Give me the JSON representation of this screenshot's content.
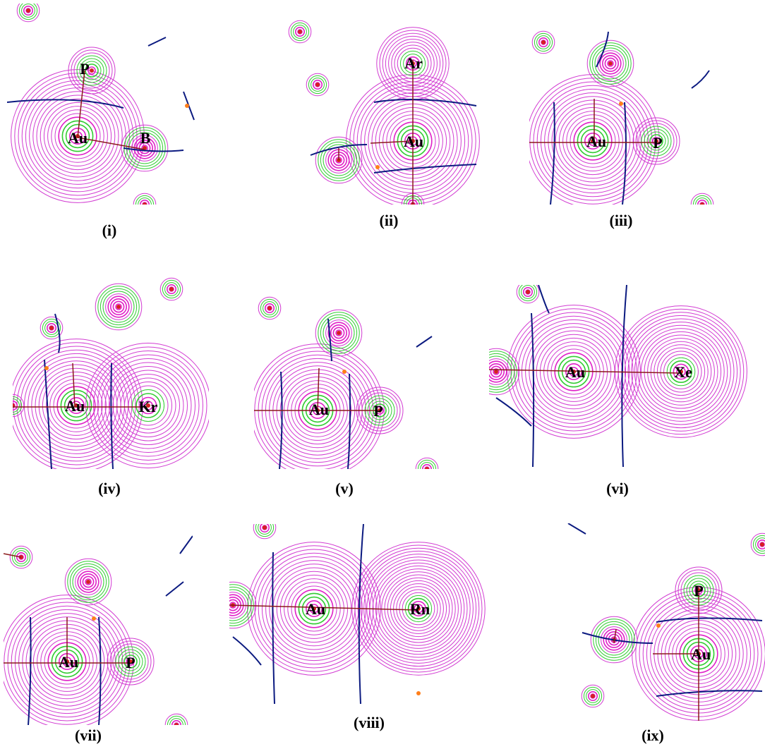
{
  "colors": {
    "contour_outer": "#d23cd2",
    "contour_inner": "#e020c8",
    "contour_green": "#33cc33",
    "bond_path": "#8b1a1a",
    "zero_flux": "#0b1a80",
    "bcp": "#1a3cff",
    "rcp": "#ff7f1a",
    "nucleus": "#d42020"
  },
  "panels": [
    {
      "caption": "(i)",
      "atoms": [
        "P",
        "Au",
        "B"
      ]
    },
    {
      "caption": "(ii)",
      "atoms": [
        "Ar",
        "Au"
      ]
    },
    {
      "caption": "(iii)",
      "atoms": [
        "Au",
        "P"
      ]
    },
    {
      "caption": "(iv)",
      "atoms": [
        "Au",
        "Kr"
      ]
    },
    {
      "caption": "(v)",
      "atoms": [
        "Au",
        "P"
      ]
    },
    {
      "caption": "(vi)",
      "atoms": [
        "Au",
        "Xe"
      ]
    },
    {
      "caption": "(vii)",
      "atoms": [
        "Au",
        "P"
      ]
    },
    {
      "caption": "(viii)",
      "atoms": [
        "Au",
        "Rn"
      ]
    },
    {
      "caption": "(ix)",
      "atoms": [
        "P",
        "Au"
      ]
    }
  ]
}
